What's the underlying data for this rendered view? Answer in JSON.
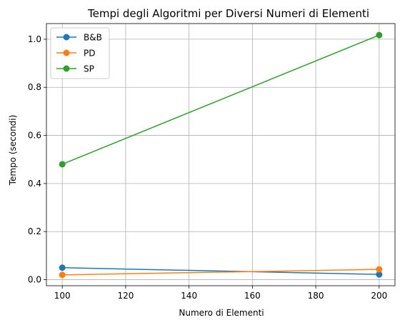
{
  "chart_data": {
    "type": "line",
    "title": "Tempi degli Algoritmi per Diversi Numeri di Elementi",
    "xlabel": "Numero di Elementi",
    "ylabel": "Tempo (secondi)",
    "x": [
      100,
      200
    ],
    "xlim": [
      95,
      205
    ],
    "ylim": [
      -0.025,
      1.065
    ],
    "xticks": [
      100,
      120,
      140,
      160,
      180,
      200
    ],
    "yticks": [
      0.0,
      0.2,
      0.4,
      0.6,
      0.8,
      1.0
    ],
    "xtick_labels": [
      "100",
      "120",
      "140",
      "160",
      "180",
      "200"
    ],
    "ytick_labels": [
      "0.0",
      "0.2",
      "0.4",
      "0.6",
      "0.8",
      "1.0"
    ],
    "grid": true,
    "legend_position": "top-left",
    "series": [
      {
        "name": "B&B",
        "color": "#1f77b4",
        "values": [
          0.05,
          0.022
        ]
      },
      {
        "name": "PD",
        "color": "#ff7f0e",
        "values": [
          0.02,
          0.043
        ]
      },
      {
        "name": "SP",
        "color": "#2ca02c",
        "values": [
          0.48,
          1.017
        ]
      }
    ]
  }
}
